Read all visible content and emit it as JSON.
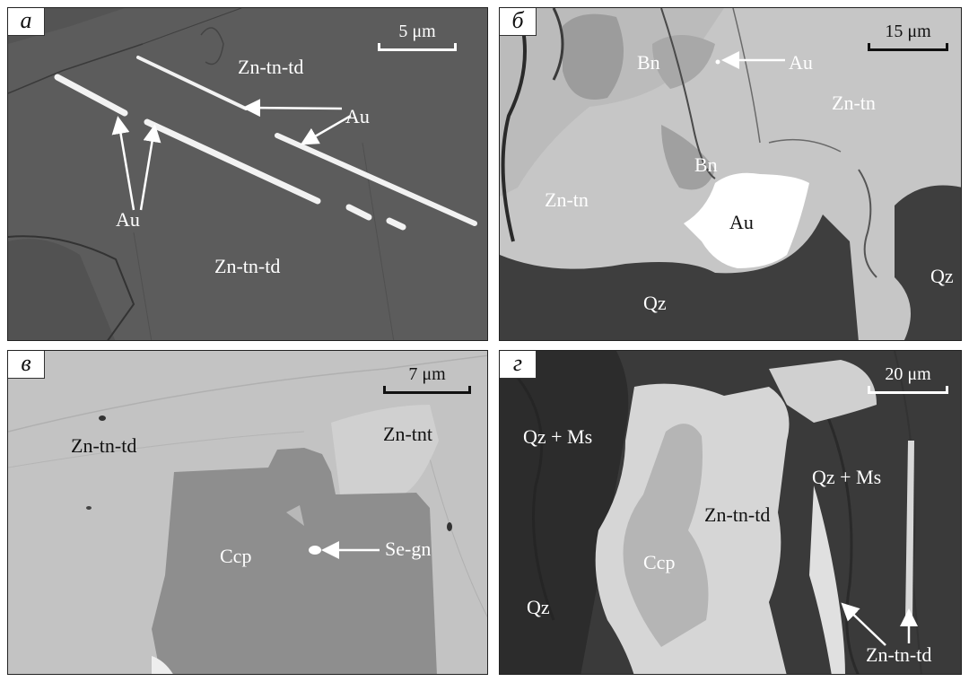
{
  "panels": {
    "a": {
      "letter": "а",
      "scale": "5 μm",
      "labels": {
        "host_top": "Zn-tn-td",
        "host_bottom": "Zn-tn-td",
        "au_right": "Au",
        "au_left": "Au"
      }
    },
    "b": {
      "letter": "б",
      "scale": "15 μm",
      "labels": {
        "bn_top": "Bn",
        "au_top": "Au",
        "zn_tn_right": "Zn-tn",
        "bn_mid": "Bn",
        "zn_tn_left": "Zn-tn",
        "au_grain": "Au",
        "qz_bottom": "Qz",
        "qz_right": "Qz"
      }
    },
    "v": {
      "letter": "в",
      "scale": "7 μm",
      "labels": {
        "zn_tn_td": "Zn-tn-td",
        "zn_tnt": "Zn-tnt",
        "ccp": "Ccp",
        "se_gn": "Se-gn"
      }
    },
    "g": {
      "letter": "г",
      "scale": "20 μm",
      "labels": {
        "qz_ms_left": "Qz + Ms",
        "qz_ms_right": "Qz + Ms",
        "zn_tn_td_mid": "Zn-tn-td",
        "ccp": "Ccp",
        "qz": "Qz",
        "zn_tn_td_bottom": "Zn-tn-td"
      }
    }
  }
}
